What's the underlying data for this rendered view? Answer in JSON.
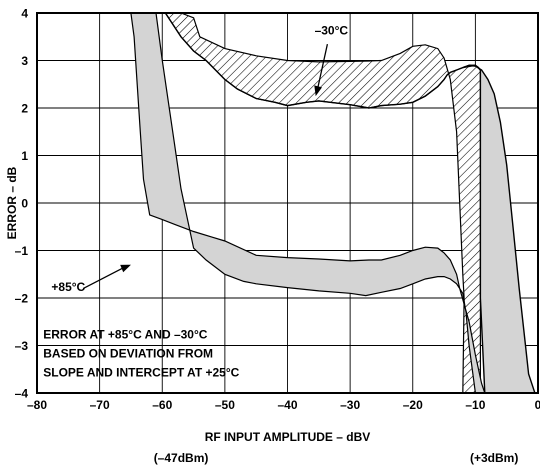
{
  "chart_data": {
    "type": "area",
    "title": "",
    "xlabel": "RF INPUT AMPLITUDE – dBV",
    "ylabel": "ERROR – dB",
    "xlim": [
      -80,
      0
    ],
    "ylim": [
      -4,
      4
    ],
    "grid": true,
    "x_ticks": [
      -80,
      -70,
      -60,
      -50,
      -40,
      -30,
      -20,
      -10,
      0
    ],
    "x_tick_labels": [
      "–80",
      "–70",
      "–60",
      "–50",
      "–40",
      "–30",
      "–20",
      "–10",
      "0"
    ],
    "y_ticks": [
      -4,
      -3,
      -2,
      -1,
      0,
      1,
      2,
      3,
      4
    ],
    "y_tick_labels": [
      "–4",
      "–3",
      "–2",
      "–1",
      "0",
      "1",
      "2",
      "3",
      "4"
    ],
    "x_secondary_labels": [
      {
        "x": -57,
        "text": "(–47dBm)"
      },
      {
        "x": -7,
        "text": "(+3dBm)"
      }
    ],
    "series": [
      {
        "name": "–30°C",
        "fill": "hatched",
        "upper": {
          "x": [
            -72.5,
            -70,
            -67,
            -65,
            -63,
            -60,
            -57,
            -55,
            -54,
            -50,
            -45,
            -40,
            -35,
            -30,
            -27,
            -25,
            -22,
            -20,
            -18,
            -16,
            -15,
            -14,
            -13,
            -12.5,
            -12,
            -11.8
          ],
          "y": [
            4,
            4,
            4,
            4,
            4,
            4,
            4,
            3.9,
            3.5,
            3.25,
            3.1,
            3.0,
            2.97,
            2.98,
            2.99,
            3.0,
            3.15,
            3.3,
            3.33,
            3.25,
            3.05,
            2.6,
            1.5,
            0,
            -1.5,
            -2.0
          ]
        },
        "lower": {
          "x": [
            -59.5,
            -57,
            -55,
            -53,
            -50,
            -48,
            -45,
            -42,
            -40,
            -37,
            -35,
            -30,
            -27,
            -25,
            -22,
            -20,
            -18,
            -16,
            -15,
            -14.5,
            -14,
            -13,
            -12,
            -11,
            -10,
            -9.5,
            -9.2
          ],
          "y": [
            4,
            3.5,
            3.2,
            3.0,
            2.6,
            2.4,
            2.2,
            2.12,
            2.05,
            2.12,
            2.15,
            2.07,
            2.0,
            2.05,
            2.08,
            2.12,
            2.25,
            2.45,
            2.6,
            2.7,
            2.75,
            2.8,
            2.85,
            2.9,
            2.9,
            2.85,
            2.8
          ]
        },
        "edge_x_at_bottom": -12
      },
      {
        "name": "+85°C",
        "fill": "gray",
        "upper": {
          "x": [
            -65,
            -64.5,
            -64,
            -63.5,
            -63,
            -62,
            -60,
            -58,
            -55,
            -52,
            -50,
            -45,
            -40,
            -35,
            -30,
            -27,
            -25,
            -22,
            -20,
            -18,
            -16,
            -15,
            -14,
            -13,
            -12.5,
            -11,
            -10,
            -9,
            -8.5
          ],
          "y": [
            4,
            3.5,
            2.5,
            1.5,
            0.5,
            -0.25,
            -0.35,
            -0.45,
            -0.6,
            -0.72,
            -0.8,
            -1.1,
            -1.15,
            -1.18,
            -1.22,
            -1.2,
            -1.2,
            -1.1,
            -1.0,
            -0.93,
            -0.95,
            -1.05,
            -1.2,
            -1.5,
            -1.8,
            -2.5,
            -3.2,
            -3.8,
            -4
          ]
        },
        "lower": {
          "x": [
            -61,
            -60,
            -58,
            -57,
            -55,
            -53,
            -50,
            -47,
            -45,
            -40,
            -35,
            -30,
            -27.5,
            -25,
            -22,
            -20,
            -18,
            -16,
            -15,
            -14,
            -13,
            -12,
            -11.5,
            -11,
            -10
          ],
          "y": [
            4,
            3.0,
            1.2,
            0.3,
            -0.95,
            -1.2,
            -1.5,
            -1.65,
            -1.7,
            -1.78,
            -1.85,
            -1.9,
            -1.95,
            -1.88,
            -1.8,
            -1.7,
            -1.6,
            -1.55,
            -1.55,
            -1.6,
            -1.7,
            -1.9,
            -2.3,
            -3.0,
            -4
          ]
        },
        "right_edge": {
          "x": [
            -12,
            -11,
            -10,
            -9,
            -8,
            -7,
            -6,
            -5,
            -4,
            -3,
            -2,
            -1.5,
            -0.5
          ],
          "y": [
            2.85,
            2.9,
            2.88,
            2.8,
            2.6,
            2.3,
            1.7,
            0.8,
            -0.5,
            -1.8,
            -3.0,
            -3.6,
            -4
          ]
        }
      }
    ],
    "annotations": [
      {
        "text": "–30°C",
        "x": -33,
        "y": 3.55,
        "arrow_to": [
          -35.5,
          2.25
        ]
      },
      {
        "text": "+85°C",
        "x": -75,
        "y": -1.85,
        "arrow_to": [
          -65,
          -1.3
        ]
      },
      {
        "text": "ERROR AT +85°C AND –30°C",
        "x": -79,
        "y": -2.85,
        "anchor": "start"
      },
      {
        "text": "BASED ON DEVIATION FROM",
        "x": -79,
        "y": -3.25,
        "anchor": "start"
      },
      {
        "text": "SLOPE AND INTERCEPT AT +25°C",
        "x": -79,
        "y": -3.65,
        "anchor": "start"
      }
    ]
  }
}
